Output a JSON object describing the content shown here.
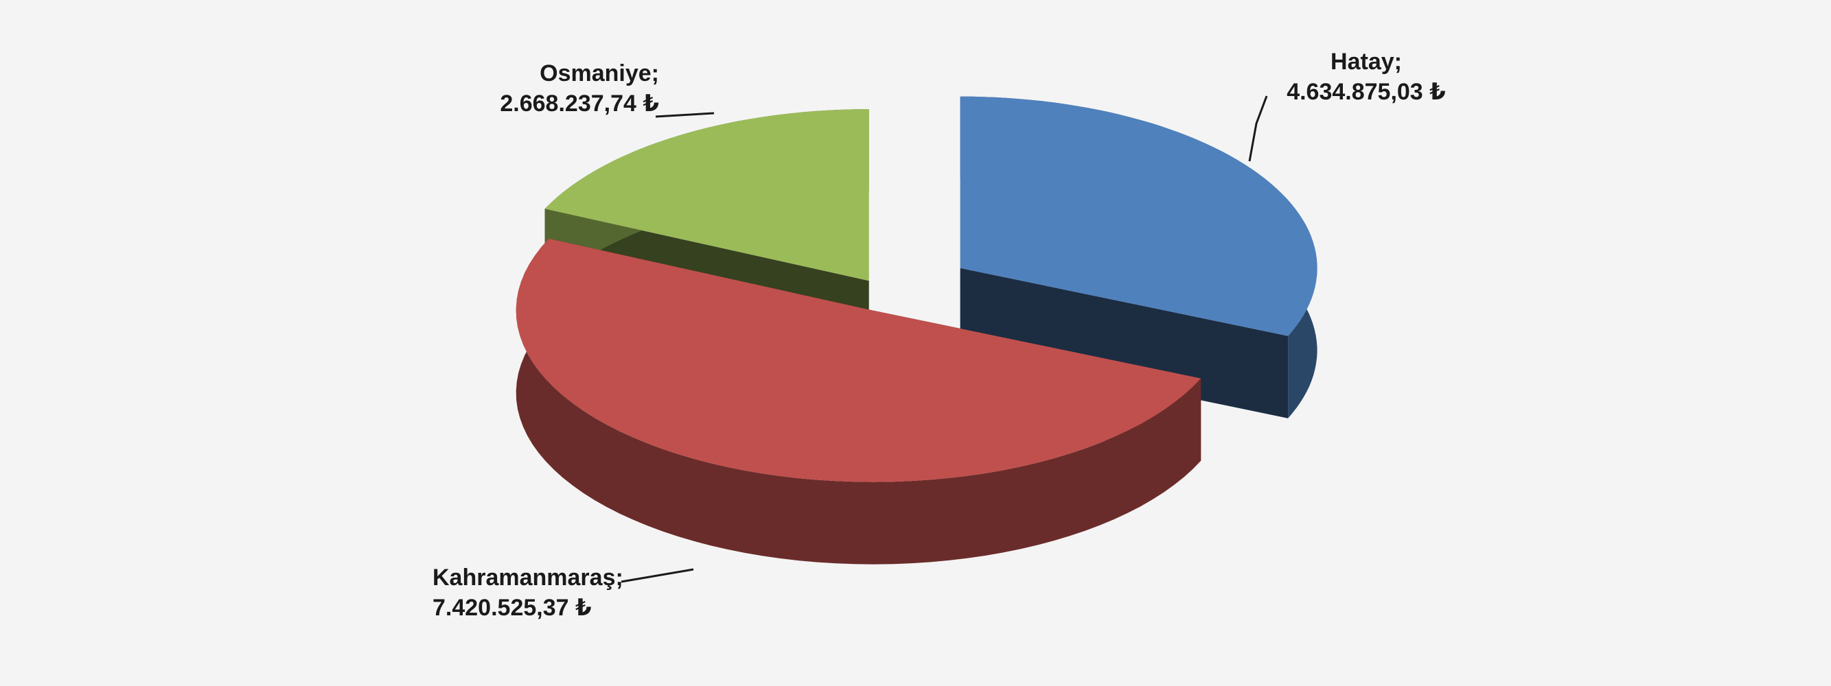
{
  "chart_data": {
    "type": "pie3d",
    "categories": [
      "Hatay",
      "Osmaniye",
      "Kahramanmaraş"
    ],
    "separator": ";",
    "values": [
      4634875.03,
      2668237.74,
      7420525.37
    ],
    "value_labels": [
      "4.634.875,03 ₺",
      "2.668.237,74 ₺",
      "7.420.525,37 ₺"
    ],
    "colors": [
      "#4f81bd",
      "#9bbb59",
      "#c0504d"
    ]
  }
}
